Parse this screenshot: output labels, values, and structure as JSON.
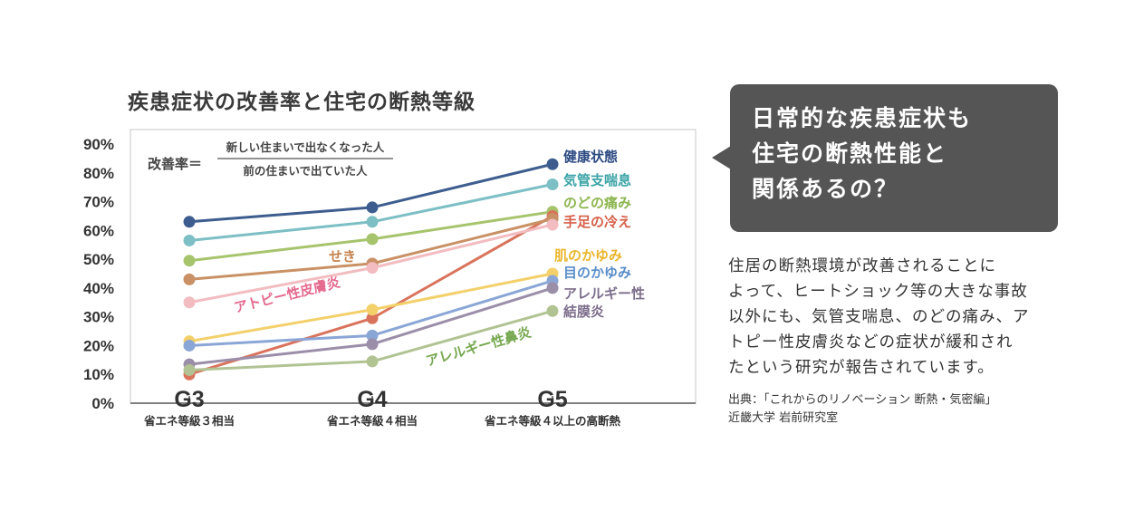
{
  "chart_data": {
    "type": "line",
    "title": "疾患症状の改善率と住宅の断熱等級",
    "formula": {
      "lead": "改善率＝",
      "numerator": "新しい住まいで出なくなった人",
      "denominator": "前の住まいで出ていた人"
    },
    "categories": [
      "G3",
      "G4",
      "G5"
    ],
    "category_sublabels": [
      "省エネ等級３相当",
      "省エネ等級４相当",
      "省エネ等級４以上の高断熱"
    ],
    "y_ticks": [
      "0%",
      "10%",
      "20%",
      "30%",
      "40%",
      "50%",
      "60%",
      "70%",
      "80%",
      "90%"
    ],
    "ylim": [
      0,
      90
    ],
    "grid": false,
    "series": [
      {
        "name": "健康状態",
        "values": [
          63,
          68,
          83
        ],
        "color": "#3e5d8f",
        "label_color": "#2d4a82"
      },
      {
        "name": "気管支喘息",
        "values": [
          56.5,
          63,
          76
        ],
        "color": "#7cbfc4",
        "label_color": "#3aa3a6"
      },
      {
        "name": "のどの痛み",
        "values": [
          49.5,
          57,
          66.5
        ],
        "color": "#a6c46c",
        "label_color": "#8db54f"
      },
      {
        "name": "手足の冷え",
        "values": [
          10,
          29.5,
          65
        ],
        "color": "#d9735c",
        "label_color": "#d75f48"
      },
      {
        "name": "せき",
        "values": [
          43,
          48.5,
          64
        ],
        "color": "#c99165",
        "label_color": "#c6834e"
      },
      {
        "name": "アトピー性皮膚炎",
        "values": [
          35,
          47,
          62
        ],
        "color": "#f2bcc0",
        "label_color": "#e46a8e"
      },
      {
        "name": "肌のかゆみ",
        "values": [
          21.5,
          32.5,
          45
        ],
        "color": "#f3d06a",
        "label_color": "#e9b52c"
      },
      {
        "name": "目のかゆみ",
        "values": [
          20,
          23.5,
          42.5
        ],
        "color": "#8aa6d6",
        "label_color": "#5a8ec9"
      },
      {
        "name": "アレルギー性結膜炎",
        "label_lines": [
          "アレルギー性",
          "結膜炎"
        ],
        "values": [
          13.5,
          20.5,
          40
        ],
        "color": "#9b8ea9",
        "label_color": "#7d6e8c"
      },
      {
        "name": "アレルギー性鼻炎",
        "values": [
          11.5,
          14.5,
          32
        ],
        "color": "#b2c393",
        "label_color": "#76a84f"
      }
    ]
  },
  "callout": {
    "lines": [
      "日常的な疾患症状も",
      "住宅の断熱性能と",
      "関係あるの？"
    ]
  },
  "body": {
    "lines": [
      "住居の断熱環境が改善されることに",
      "よって、ヒートショック等の大きな事故",
      "以外にも、気管支喘息、のどの痛み、ア",
      "トピー性皮膚炎などの症状が緩和され",
      "たという研究が報告されています。"
    ]
  },
  "source": {
    "lines": [
      "出典：「これからのリノベーション 断熱・気密編」",
      "近畿大学 岩前研究室"
    ]
  }
}
